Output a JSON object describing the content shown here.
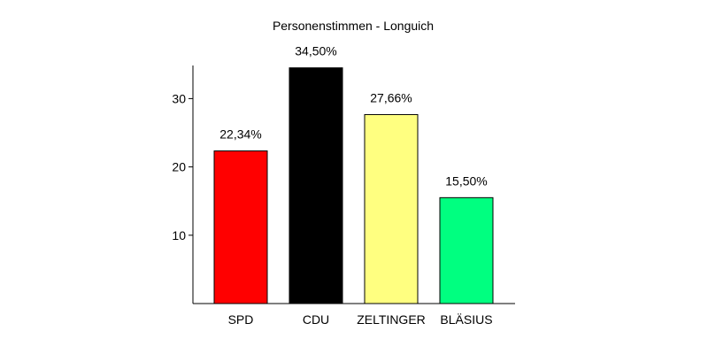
{
  "chart_data": {
    "type": "bar",
    "title": "Personenstimmen - Longuich",
    "categories": [
      "SPD",
      "CDU",
      "ZELTINGER",
      "BLÄSIUS"
    ],
    "values": [
      22.34,
      34.5,
      27.66,
      15.5
    ],
    "data_labels": [
      "22,34%",
      "34,50%",
      "27,66%",
      "15,50%"
    ],
    "colors": [
      "#ff0000",
      "#000000",
      "#ffff80",
      "#00ff80"
    ],
    "ylim": [
      0,
      35
    ],
    "yticks": [
      10,
      20,
      30
    ],
    "xlabel": "",
    "ylabel": "",
    "grid": false,
    "legend": "none"
  }
}
